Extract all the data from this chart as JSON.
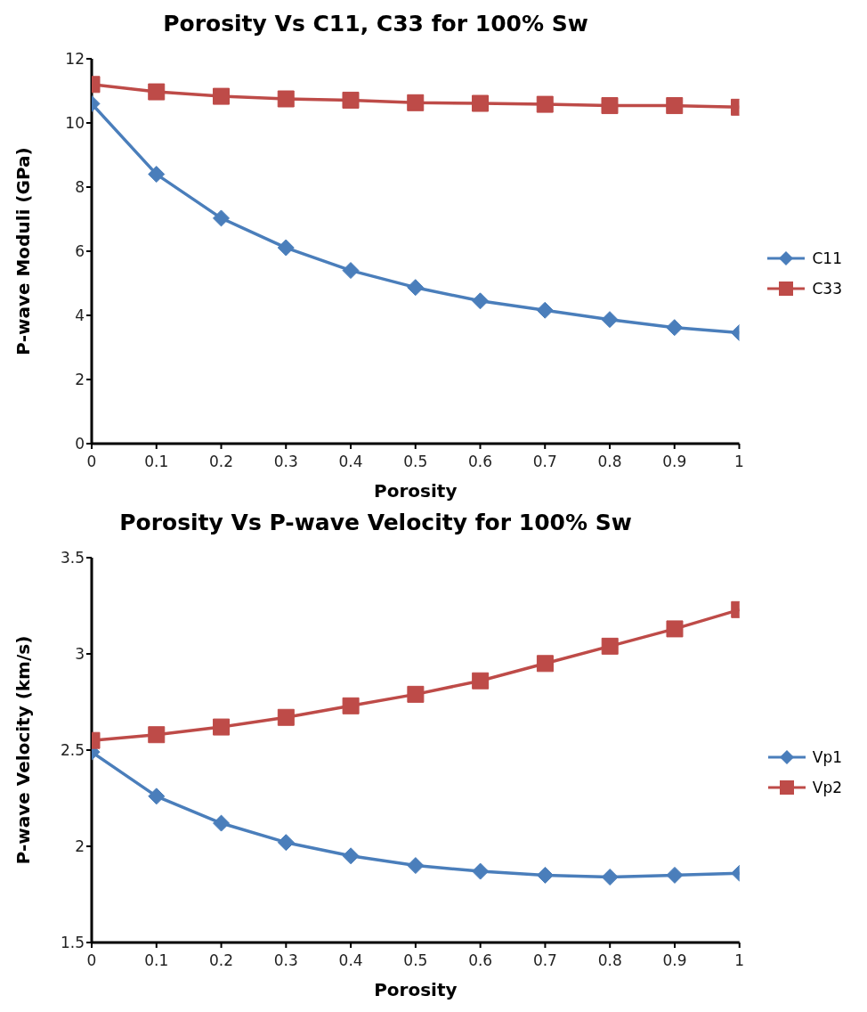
{
  "chart_data": [
    {
      "type": "line",
      "title": "Porosity Vs C11, C33 for 100% Sw",
      "xlabel": "Porosity",
      "ylabel": "P-wave Moduli (GPa)",
      "x": [
        0,
        0.1,
        0.2,
        0.3,
        0.4,
        0.5,
        0.6,
        0.7,
        0.8,
        0.9,
        1
      ],
      "xlim": [
        0,
        1
      ],
      "xticks": [
        0,
        0.1,
        0.2,
        0.3,
        0.4,
        0.5,
        0.6,
        0.7,
        0.8,
        0.9,
        1
      ],
      "ylim": [
        0,
        12
      ],
      "yticks": [
        0,
        2,
        4,
        6,
        8,
        10,
        12
      ],
      "grid": false,
      "legend": "right",
      "series": [
        {
          "name": "C11",
          "color": "#4a7ebb",
          "marker": "diamond",
          "values": [
            10.6,
            8.4,
            7.03,
            6.11,
            5.4,
            4.87,
            4.45,
            4.16,
            3.87,
            3.62,
            3.46
          ]
        },
        {
          "name": "C33",
          "color": "#be4b48",
          "marker": "square",
          "values": [
            11.2,
            10.97,
            10.83,
            10.75,
            10.71,
            10.63,
            10.61,
            10.58,
            10.54,
            10.54,
            10.49
          ]
        }
      ]
    },
    {
      "type": "line",
      "title": "Porosity Vs P-wave Velocity for 100% Sw",
      "xlabel": "Porosity",
      "ylabel": "P-wave Velocity (km/s)",
      "x": [
        0,
        0.1,
        0.2,
        0.3,
        0.4,
        0.5,
        0.6,
        0.7,
        0.8,
        0.9,
        1
      ],
      "xlim": [
        0,
        1
      ],
      "xticks": [
        0,
        0.1,
        0.2,
        0.3,
        0.4,
        0.5,
        0.6,
        0.7,
        0.8,
        0.9,
        1
      ],
      "ylim": [
        1.5,
        3.5
      ],
      "yticks": [
        1.5,
        2,
        2.5,
        3,
        3.5
      ],
      "grid": false,
      "legend": "right",
      "series": [
        {
          "name": "Vp1",
          "color": "#4a7ebb",
          "marker": "diamond",
          "values": [
            2.49,
            2.26,
            2.12,
            2.02,
            1.95,
            1.9,
            1.87,
            1.85,
            1.84,
            1.85,
            1.86
          ]
        },
        {
          "name": "Vp2",
          "color": "#be4b48",
          "marker": "square",
          "values": [
            2.55,
            2.58,
            2.62,
            2.67,
            2.73,
            2.79,
            2.86,
            2.95,
            3.04,
            3.13,
            3.23
          ]
        }
      ]
    }
  ]
}
